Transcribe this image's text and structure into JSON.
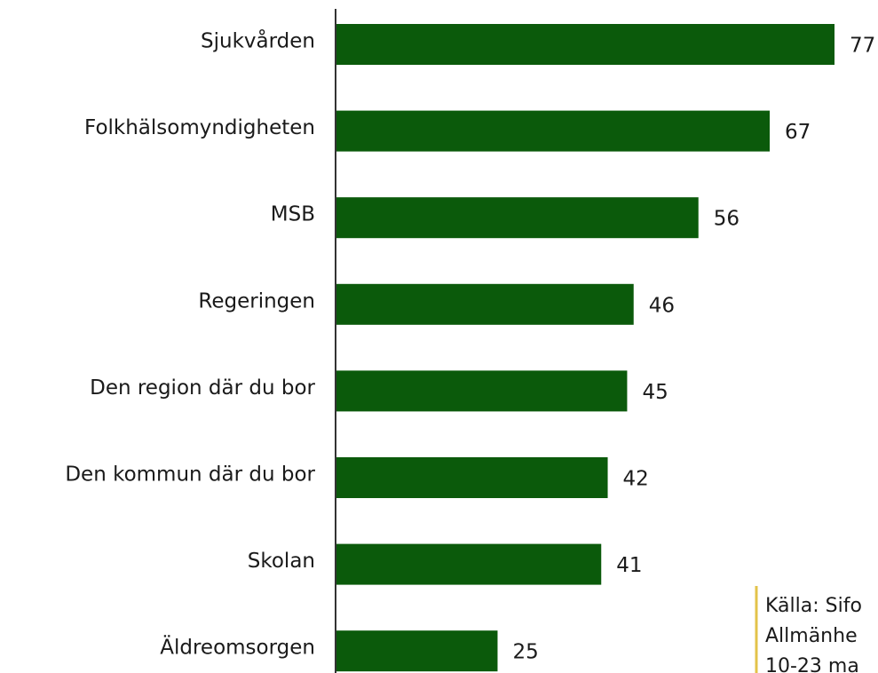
{
  "chart_data": {
    "type": "barh",
    "categories": [
      "Sjukvården",
      "Folkhälsomyndigheten",
      "MSB",
      "Regeringen",
      "Den region där du bor",
      "Den kommun där du bor",
      "Skolan",
      "Äldreomsorgen"
    ],
    "values": [
      77,
      67,
      56,
      46,
      45,
      42,
      41,
      25
    ],
    "color": "#0b5a0b",
    "annotations": [
      "Källa: Sifo",
      "Allmänhe",
      "10-23 ma"
    ]
  }
}
